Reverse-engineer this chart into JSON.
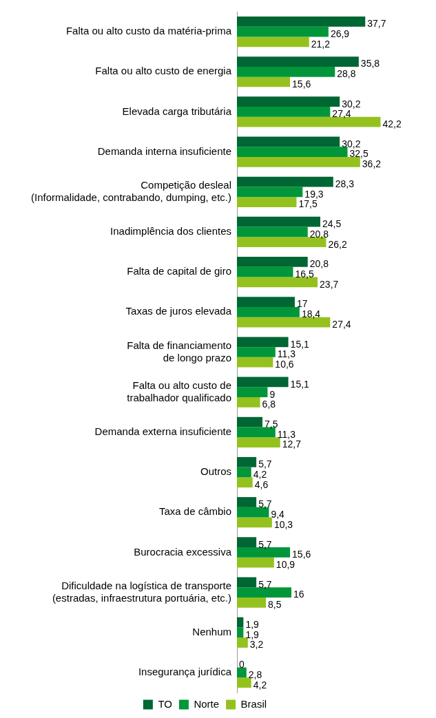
{
  "chart_data": {
    "type": "bar",
    "orientation": "horizontal",
    "legend": "bottom",
    "categories": [
      "Falta ou alto custo da matéria-prima",
      "Falta ou alto custo de energia",
      "Elevada carga tributária",
      "Demanda interna insuficiente",
      "Competição desleal\n(Informalidade, contrabando, dumping, etc.)",
      "Inadimplência dos clientes",
      "Falta de capital de giro",
      "Taxas de juros elevada",
      "Falta de financiamento\nde longo prazo",
      "Falta ou alto custo de\ntrabalhador qualificado",
      "Demanda externa insuficiente",
      "Outros",
      "Taxa de câmbio",
      "Burocracia excessiva",
      "Dificuldade na logística de transporte\n(estradas, infraestrutura portuária, etc.)",
      "Nenhum",
      "Insegurança jurídica"
    ],
    "series": [
      {
        "name": "TO",
        "color": "#006633",
        "values": [
          37.7,
          35.8,
          30.2,
          30.2,
          28.3,
          24.5,
          20.8,
          17,
          15.1,
          15.1,
          7.5,
          5.7,
          5.7,
          5.7,
          5.7,
          1.9,
          0
        ],
        "value_labels": [
          "37,7",
          "35,8",
          "30,2",
          "30,2",
          "28,3",
          "24,5",
          "20,8",
          "17",
          "15,1",
          "15,1",
          "7,5",
          "5,7",
          "5,7",
          "5,7",
          "5,7",
          "1,9",
          "0"
        ]
      },
      {
        "name": "Norte",
        "color": "#009639",
        "values": [
          26.9,
          28.8,
          27.4,
          32.5,
          19.3,
          20.8,
          16.5,
          18.4,
          11.3,
          9,
          11.3,
          4.2,
          9.4,
          15.6,
          16,
          1.9,
          2.8
        ],
        "value_labels": [
          "26,9",
          "28,8",
          "27,4",
          "32,5",
          "19,3",
          "20,8",
          "16,5",
          "18,4",
          "11,3",
          "9",
          "11,3",
          "4,2",
          "9,4",
          "15,6",
          "16",
          "1,9",
          "2,8"
        ]
      },
      {
        "name": "Brasil",
        "color": "#95c11f",
        "values": [
          21.2,
          15.6,
          42.2,
          36.2,
          17.5,
          26.2,
          23.7,
          27.4,
          10.6,
          6.8,
          12.7,
          4.6,
          10.3,
          10.9,
          8.5,
          3.2,
          4.2
        ],
        "value_labels": [
          "21,2",
          "15,6",
          "42,2",
          "36,2",
          "17,5",
          "26,2",
          "23,7",
          "27,4",
          "10,6",
          "6,8",
          "12,7",
          "4,6",
          "10,3",
          "10,9",
          "8,5",
          "3,2",
          "4,2"
        ]
      }
    ]
  }
}
